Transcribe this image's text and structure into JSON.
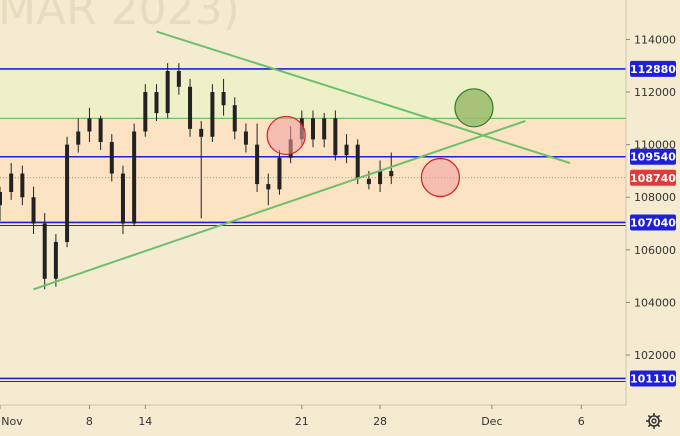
{
  "chart_data": {
    "type": "candlestick",
    "watermark": "MAR 2023)",
    "colors": {
      "background": "#f4ebd0",
      "band_upper": "#eef0c8",
      "band_main": "#fbe3c4",
      "level_line": "#1f1fd9",
      "level_label_bg": "#1f1fd9",
      "current_label_bg": "#e03b3b",
      "candle": "#222222",
      "trendline": "#6cc06c",
      "circle_red_fill": "#f0a0a0",
      "circle_red_stroke": "#d22222",
      "circle_green_fill": "#9fbe6f",
      "circle_green_stroke": "#2f7a2f"
    },
    "y_axis": {
      "ylim": [
        100100,
        115500
      ],
      "ticks": [
        "114000",
        "112000",
        "110000",
        "108000",
        "106000",
        "104000",
        "102000"
      ]
    },
    "x_axis": {
      "ticks": [
        "Nov",
        "8",
        "14",
        "21",
        "28",
        "Dec",
        "6"
      ]
    },
    "levels": [
      {
        "value": 112880,
        "label": "112880",
        "style": "blue"
      },
      {
        "value": 109540,
        "label": "109540",
        "style": "blue"
      },
      {
        "value": 107040,
        "label": "107040",
        "style": "blue"
      },
      {
        "value": 101110,
        "label": "101110",
        "style": "blue"
      },
      {
        "value": 111000,
        "label": "",
        "style": "green"
      }
    ],
    "current_price": {
      "value": 108740,
      "label": "108740"
    },
    "ohlc": [
      {
        "d": 0,
        "o": 107700,
        "h": 108400,
        "l": 107100,
        "c": 108200
      },
      {
        "d": 0.5,
        "o": 108200,
        "h": 109300,
        "l": 107900,
        "c": 108900
      },
      {
        "d": 1,
        "o": 108900,
        "h": 109200,
        "l": 107700,
        "c": 108000
      },
      {
        "d": 1.5,
        "o": 108000,
        "h": 108400,
        "l": 106600,
        "c": 107000
      },
      {
        "d": 2,
        "o": 107000,
        "h": 107400,
        "l": 104500,
        "c": 104900
      },
      {
        "d": 2.5,
        "o": 104900,
        "h": 106600,
        "l": 104600,
        "c": 106300
      },
      {
        "d": 3,
        "o": 106300,
        "h": 110300,
        "l": 106100,
        "c": 110000
      },
      {
        "d": 3.5,
        "o": 110000,
        "h": 111000,
        "l": 109700,
        "c": 110500
      },
      {
        "d": 4,
        "o": 110500,
        "h": 111400,
        "l": 110100,
        "c": 111000
      },
      {
        "d": 4.5,
        "o": 111000,
        "h": 111100,
        "l": 109800,
        "c": 110100
      },
      {
        "d": 5,
        "o": 110100,
        "h": 110400,
        "l": 108600,
        "c": 108900
      },
      {
        "d": 5.5,
        "o": 108900,
        "h": 109200,
        "l": 106600,
        "c": 107000
      },
      {
        "d": 6,
        "o": 107000,
        "h": 110800,
        "l": 106900,
        "c": 110500
      },
      {
        "d": 6.5,
        "o": 110500,
        "h": 112300,
        "l": 110300,
        "c": 112000
      },
      {
        "d": 7,
        "o": 112000,
        "h": 112300,
        "l": 110900,
        "c": 111200
      },
      {
        "d": 7.5,
        "o": 111200,
        "h": 113100,
        "l": 111000,
        "c": 112800
      },
      {
        "d": 8,
        "o": 112800,
        "h": 113100,
        "l": 111900,
        "c": 112200
      },
      {
        "d": 8.5,
        "o": 112200,
        "h": 112500,
        "l": 110300,
        "c": 110600
      },
      {
        "d": 9,
        "o": 110600,
        "h": 110900,
        "l": 107200,
        "c": 110300
      },
      {
        "d": 9.5,
        "o": 110300,
        "h": 112300,
        "l": 110100,
        "c": 112000
      },
      {
        "d": 10,
        "o": 112000,
        "h": 112500,
        "l": 111100,
        "c": 111500
      },
      {
        "d": 10.5,
        "o": 111500,
        "h": 111800,
        "l": 110200,
        "c": 110500
      },
      {
        "d": 11,
        "o": 110500,
        "h": 110800,
        "l": 109700,
        "c": 110000
      },
      {
        "d": 11.5,
        "o": 110000,
        "h": 110800,
        "l": 108200,
        "c": 108500
      },
      {
        "d": 12,
        "o": 108500,
        "h": 108900,
        "l": 107700,
        "c": 108300
      },
      {
        "d": 12.5,
        "o": 108300,
        "h": 109800,
        "l": 108100,
        "c": 109500
      },
      {
        "d": 13,
        "o": 109500,
        "h": 110700,
        "l": 109300,
        "c": 110200
      },
      {
        "d": 13.5,
        "o": 110200,
        "h": 111300,
        "l": 110000,
        "c": 111000
      },
      {
        "d": 14,
        "o": 111000,
        "h": 111300,
        "l": 109900,
        "c": 110200
      },
      {
        "d": 14.5,
        "o": 110200,
        "h": 111200,
        "l": 109900,
        "c": 111000
      },
      {
        "d": 15,
        "o": 111000,
        "h": 111300,
        "l": 109400,
        "c": 109600
      },
      {
        "d": 15.5,
        "o": 109600,
        "h": 110400,
        "l": 109300,
        "c": 110000
      },
      {
        "d": 16,
        "o": 110000,
        "h": 110200,
        "l": 108500,
        "c": 108700
      },
      {
        "d": 16.5,
        "o": 108700,
        "h": 109000,
        "l": 108300,
        "c": 108500
      },
      {
        "d": 17,
        "o": 108500,
        "h": 109400,
        "l": 108200,
        "c": 109000
      },
      {
        "d": 17.5,
        "o": 109000,
        "h": 109700,
        "l": 108500,
        "c": 108800
      }
    ],
    "x_range": [
      0,
      28
    ],
    "x_tick_positions": [
      0,
      4,
      6.5,
      13.5,
      17,
      22,
      26
    ],
    "trendlines": [
      {
        "name": "descending",
        "from": {
          "d": 7,
          "v": 114300
        },
        "to": {
          "d": 25.5,
          "v": 109300
        }
      },
      {
        "name": "ascending",
        "from": {
          "d": 1.5,
          "v": 104500
        },
        "to": {
          "d": 23.5,
          "v": 110900
        }
      }
    ],
    "circles": [
      {
        "color": "red",
        "d": 12.8,
        "v": 110350
      },
      {
        "color": "red",
        "d": 19.7,
        "v": 108750
      },
      {
        "color": "green",
        "d": 21.2,
        "v": 111400
      }
    ]
  }
}
